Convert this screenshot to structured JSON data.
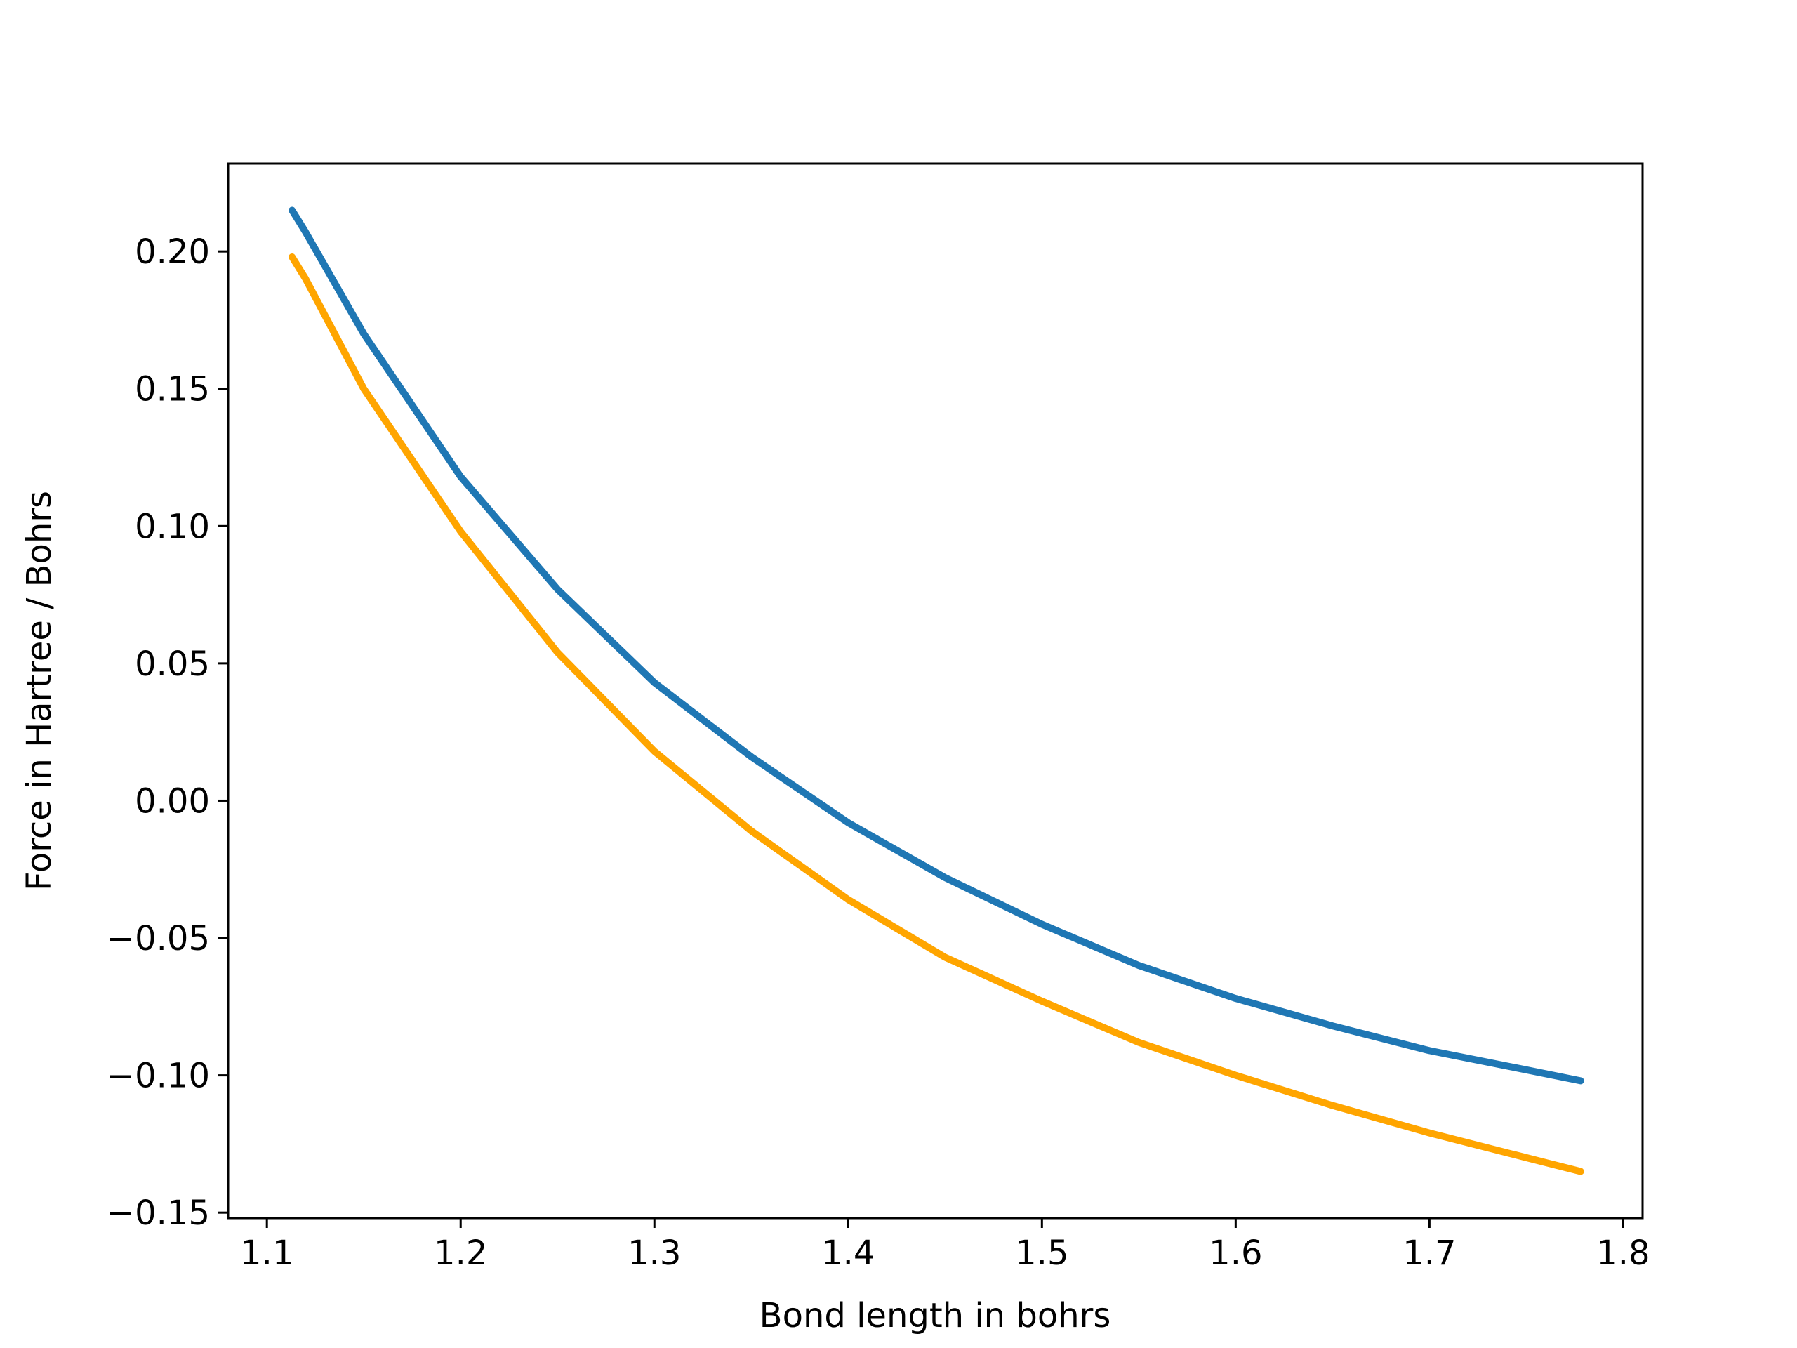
{
  "chart_data": {
    "type": "line",
    "title": "",
    "xlabel": "Bond length in bohrs",
    "ylabel": "Force in Hartree / Bohrs",
    "xlim": [
      1.08,
      1.81
    ],
    "ylim": [
      -0.152,
      0.232
    ],
    "xticks": [
      1.1,
      1.2,
      1.3,
      1.4,
      1.5,
      1.6,
      1.7,
      1.8
    ],
    "xtick_labels": [
      "1.1",
      "1.2",
      "1.3",
      "1.4",
      "1.5",
      "1.6",
      "1.7",
      "1.8"
    ],
    "yticks": [
      -0.15,
      -0.1,
      -0.05,
      0.0,
      0.05,
      0.1,
      0.15,
      0.2
    ],
    "ytick_labels": [
      "−0.15",
      "−0.10",
      "−0.05",
      "0.00",
      "0.05",
      "0.10",
      "0.15",
      "0.20"
    ],
    "grid": false,
    "legend": false,
    "series": [
      {
        "color": "#1f77b4",
        "x": [
          1.113,
          1.12,
          1.15,
          1.2,
          1.25,
          1.3,
          1.35,
          1.4,
          1.45,
          1.5,
          1.55,
          1.6,
          1.65,
          1.7,
          1.75,
          1.778
        ],
        "y": [
          0.215,
          0.207,
          0.17,
          0.118,
          0.077,
          0.043,
          0.016,
          -0.008,
          -0.028,
          -0.045,
          -0.06,
          -0.072,
          -0.082,
          -0.091,
          -0.098,
          -0.102
        ]
      },
      {
        "color": "#ffa500",
        "x": [
          1.113,
          1.12,
          1.15,
          1.2,
          1.25,
          1.3,
          1.35,
          1.4,
          1.45,
          1.5,
          1.55,
          1.6,
          1.65,
          1.7,
          1.75,
          1.778
        ],
        "y": [
          0.198,
          0.19,
          0.15,
          0.098,
          0.054,
          0.018,
          -0.011,
          -0.036,
          -0.057,
          -0.073,
          -0.088,
          -0.1,
          -0.111,
          -0.121,
          -0.13,
          -0.135
        ]
      }
    ]
  }
}
